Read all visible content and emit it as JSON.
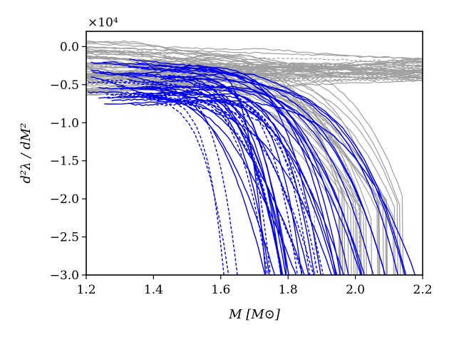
{
  "chart_data": {
    "type": "line",
    "title": "",
    "xlabel": "M [M⊙]",
    "ylabel": "d²λ / dM²",
    "y_scale_label": "×10⁴",
    "xlim": [
      1.2,
      2.2
    ],
    "ylim": [
      -3.0,
      0.2
    ],
    "x_ticks": [
      1.2,
      1.4,
      1.6,
      1.8,
      2.0,
      2.2
    ],
    "x_tick_labels": [
      "1.2",
      "1.4",
      "1.6",
      "1.8",
      "2.0",
      "2.2"
    ],
    "y_ticks": [
      0.0,
      -0.5,
      -1.0,
      -1.5,
      -2.0,
      -2.5,
      -3.0
    ],
    "y_tick_labels": [
      "0.0",
      "−0.5",
      "−1.0",
      "−1.5",
      "−2.0",
      "−2.5",
      "−3.0"
    ],
    "grid": false,
    "legend": "none",
    "colors": {
      "gray": "#a0a0a0",
      "blue": "#0000ee"
    },
    "series_groups": [
      {
        "color": "gray",
        "style": "solid",
        "count": 60,
        "start_y_range": [
          -0.65,
          0.1
        ],
        "end_y_range": [
          -0.45,
          -0.15
        ],
        "dive_fraction": 0.45,
        "dive_x_range": [
          1.95,
          2.14
        ]
      },
      {
        "color": "gray",
        "style": "dashed",
        "count": 12,
        "start_y_range": [
          -0.5,
          -0.05
        ],
        "end_y_range": [
          -0.45,
          -0.2
        ],
        "dive_fraction": 0.2,
        "dive_x_range": [
          1.85,
          2.05
        ]
      },
      {
        "color": "blue",
        "style": "solid",
        "count": 34,
        "start_y_range": [
          -0.8,
          -0.1
        ],
        "end_y_range": [
          -3.0,
          -3.0
        ],
        "dive_x_range": [
          1.72,
          2.2
        ]
      },
      {
        "color": "blue",
        "style": "dashed",
        "count": 12,
        "start_y_range": [
          -0.75,
          -0.4
        ],
        "end_y_range": [
          -3.0,
          -3.0
        ],
        "dive_x_range": [
          1.6,
          1.92
        ]
      }
    ]
  }
}
